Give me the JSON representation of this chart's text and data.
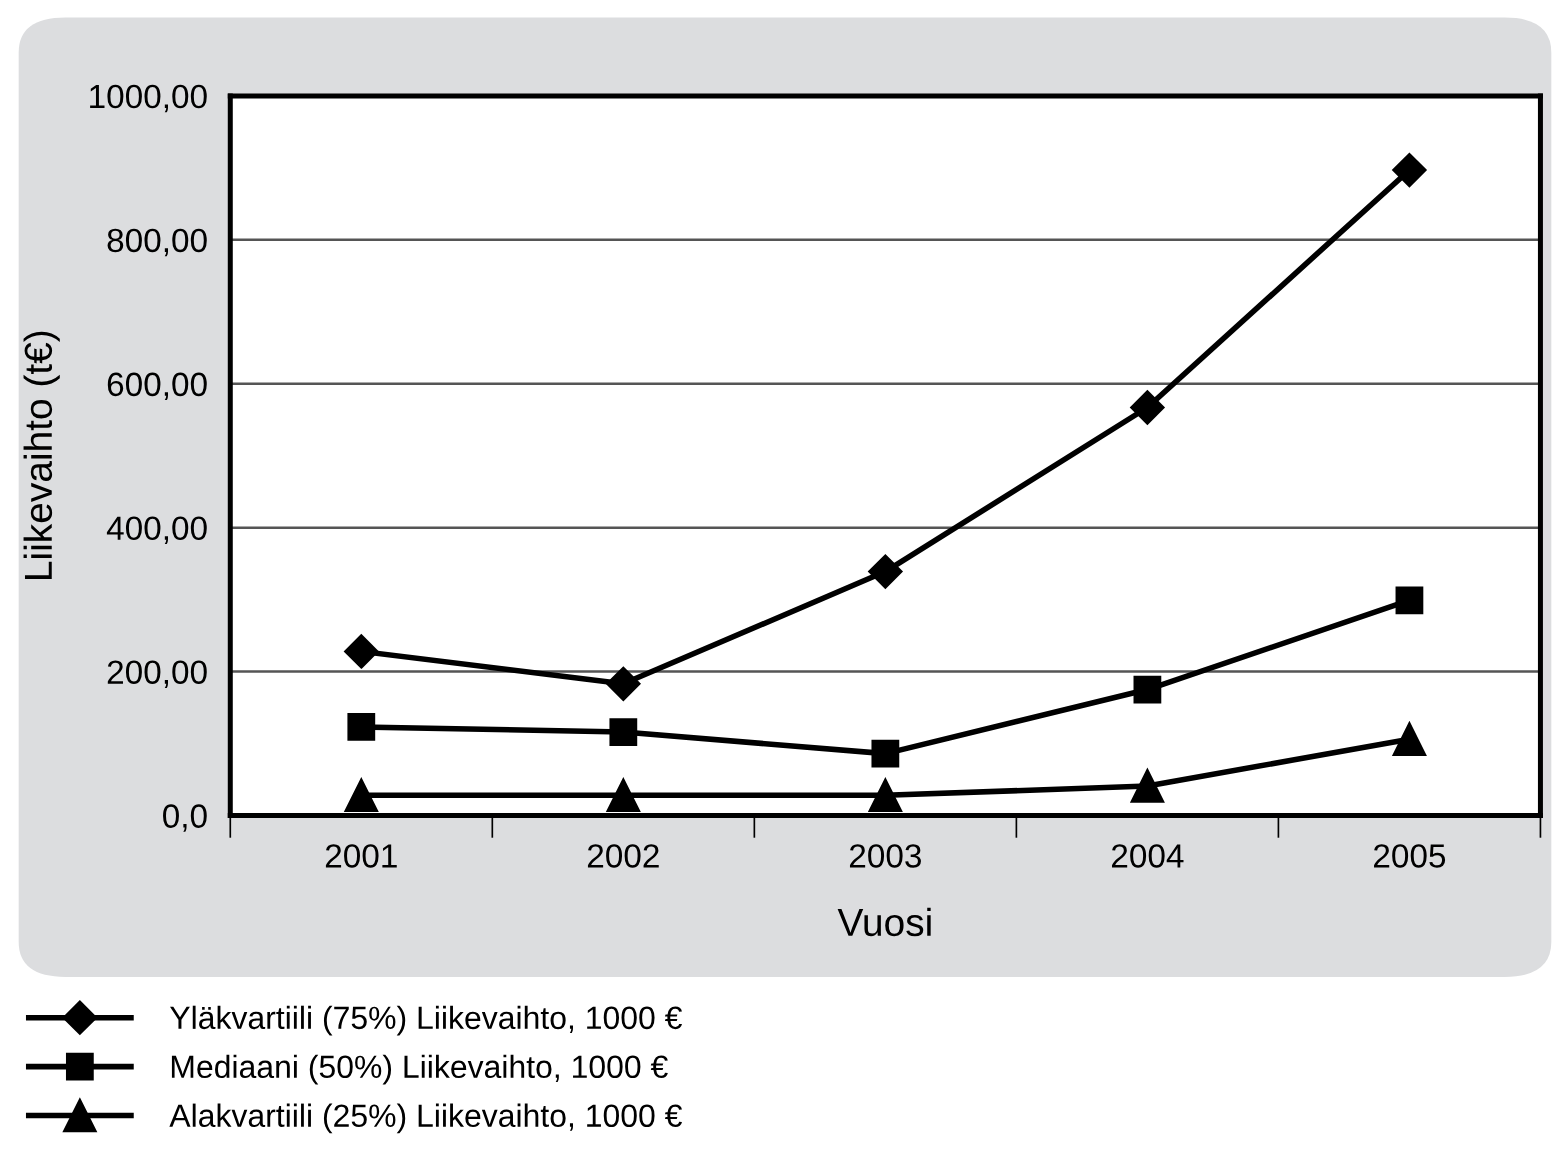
{
  "chart_data": {
    "type": "line",
    "xlabel": "Vuosi",
    "ylabel": "Liikevaihto (t€)",
    "categories": [
      "2001",
      "2002",
      "2003",
      "2004",
      "2005"
    ],
    "series": [
      {
        "name": "Yläkvartiili (75%) Liikevaihto, 1000 €",
        "color": "#000000",
        "marker": "diamond",
        "values": [
          228,
          183,
          339,
          567,
          897
        ]
      },
      {
        "name": "Mediaani (50%) Liikevaihto, 1000 €",
        "color": "#000000",
        "marker": "square",
        "values": [
          123,
          116,
          86,
          175,
          299
        ]
      },
      {
        "name": "Alakvartiili (25%) Liikevaihto, 1000 €",
        "color": "#000000",
        "marker": "triangle",
        "values": [
          28,
          28,
          28,
          41,
          106
        ]
      }
    ],
    "ylim": [
      0,
      1000
    ],
    "yticks": [
      {
        "value": 0,
        "label": "0,0"
      },
      {
        "value": 200,
        "label": "200,00"
      },
      {
        "value": 400,
        "label": "400,00"
      },
      {
        "value": 600,
        "label": "600,00"
      },
      {
        "value": 800,
        "label": "800,00"
      },
      {
        "value": 1000,
        "label": "1000,00"
      }
    ],
    "grid": "y",
    "legend": "bottom left",
    "line_style": "solid"
  }
}
